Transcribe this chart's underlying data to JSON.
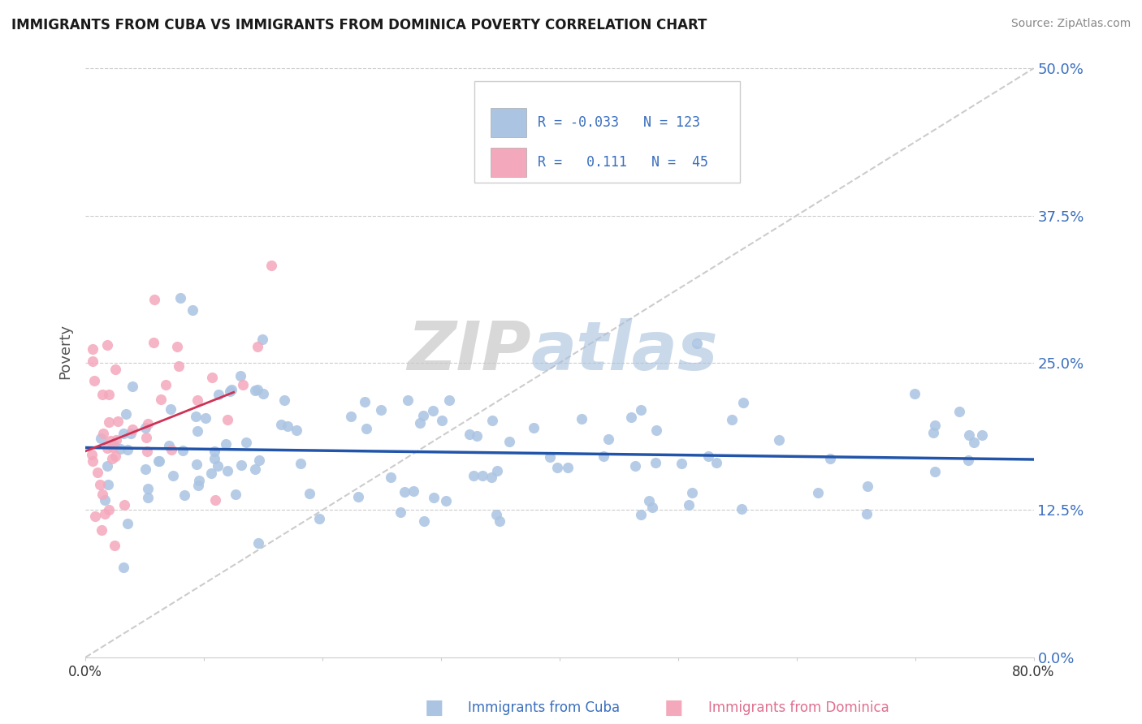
{
  "title": "IMMIGRANTS FROM CUBA VS IMMIGRANTS FROM DOMINICA POVERTY CORRELATION CHART",
  "source": "Source: ZipAtlas.com",
  "ylabel": "Poverty",
  "ytick_positions": [
    0.0,
    0.125,
    0.25,
    0.375,
    0.5
  ],
  "ytick_labels_right": [
    "0.0%",
    "12.5%",
    "25.0%",
    "37.5%",
    "50.0%"
  ],
  "xlim": [
    0.0,
    0.8
  ],
  "ylim": [
    0.0,
    0.52
  ],
  "watermark_text": "ZIPatlas",
  "color_cuba": "#aac4e2",
  "color_dominica": "#f4a8bc",
  "trendline_cuba_color": "#2255aa",
  "trendline_dominica_color": "#cc3355",
  "background_color": "#ffffff",
  "grid_color": "#cccccc",
  "grid_style": "--",
  "title_color": "#1a1a1a",
  "source_color": "#888888",
  "ylabel_color": "#555555",
  "tick_color": "#3a6fbf",
  "legend_text_color": "#3a6fbf",
  "legend_r_color": "#cc2255",
  "cuba_trendline_x": [
    0.0,
    0.8
  ],
  "cuba_trendline_y": [
    0.178,
    0.168
  ],
  "dom_trendline_x": [
    0.0,
    0.125
  ],
  "dom_trendline_y": [
    0.175,
    0.225
  ],
  "diag_line_x": [
    0.0,
    0.8
  ],
  "diag_line_y": [
    0.0,
    0.5
  ],
  "bottom_legend_cuba_text": "Immigrants from Cuba",
  "bottom_legend_dom_text": "Immigrants from Dominica",
  "legend_r1_text": "R = -0.033",
  "legend_n1_text": "N = 123",
  "legend_r2_text": "R =   0.111",
  "legend_n2_text": "N =  45"
}
